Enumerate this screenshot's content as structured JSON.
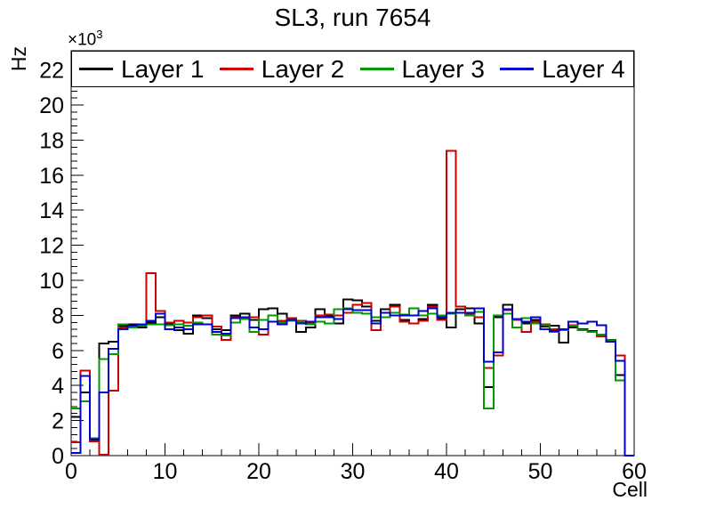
{
  "chart_data": {
    "type": "step-histogram",
    "title": "SL3, run 7654",
    "xlabel": "Cell",
    "ylabel": "Hz",
    "y_multiplier_base": "×10",
    "y_multiplier_exp": "3",
    "values_unit": "×10³ Hz",
    "n_bins": 60,
    "bin_width": 1,
    "xlim": [
      0,
      60
    ],
    "ylim": [
      0,
      23.1
    ],
    "x_ticks": [
      0,
      10,
      20,
      30,
      40,
      50,
      60
    ],
    "y_ticks": [
      0,
      2,
      4,
      6,
      8,
      10,
      12,
      14,
      16,
      18,
      20,
      22
    ],
    "x_minor_step": 2,
    "y_minor_step": 0.4,
    "grid": false,
    "legend_position": "top-inside-full-width",
    "axis_color": "#000000",
    "background_color": "#ffffff",
    "series": [
      {
        "name": "Layer 1",
        "color": "#000000",
        "values": [
          2.2,
          3.6,
          0.9,
          6.4,
          6.5,
          7.4,
          7.5,
          7.3,
          7.6,
          7.9,
          7.5,
          7.15,
          6.95,
          8.0,
          7.85,
          7.2,
          7.15,
          8.0,
          8.1,
          7.75,
          8.35,
          8.4,
          8.1,
          7.8,
          7.05,
          7.3,
          8.35,
          8.0,
          7.55,
          8.9,
          8.85,
          8.5,
          7.7,
          8.35,
          8.6,
          7.75,
          7.55,
          7.8,
          8.6,
          7.8,
          7.3,
          8.35,
          8.4,
          7.55,
          3.9,
          7.9,
          8.6,
          7.8,
          7.55,
          7.75,
          7.35,
          7.4,
          6.45,
          7.3,
          7.2,
          7.1,
          6.9,
          6.55,
          4.6,
          0
        ]
      },
      {
        "name": "Layer 2",
        "color": "#cc0000",
        "values": [
          0.75,
          4.85,
          0.8,
          0.05,
          3.7,
          7.3,
          7.4,
          7.5,
          10.4,
          8.25,
          7.6,
          7.7,
          7.6,
          7.9,
          8.0,
          7.35,
          6.6,
          7.9,
          7.85,
          7.9,
          6.9,
          8.0,
          7.7,
          7.85,
          7.7,
          7.6,
          8.0,
          8.05,
          8.0,
          8.15,
          8.6,
          8.7,
          7.15,
          8.15,
          8.5,
          7.65,
          7.55,
          7.7,
          8.5,
          7.75,
          17.4,
          8.5,
          8.1,
          7.9,
          5.0,
          5.7,
          8.3,
          7.75,
          7.05,
          7.65,
          7.5,
          7.2,
          7.2,
          7.45,
          7.15,
          7.05,
          6.8,
          6.6,
          5.7,
          0
        ]
      },
      {
        "name": "Layer 3",
        "color": "#009900",
        "values": [
          2.7,
          3.1,
          1.0,
          5.5,
          5.8,
          7.5,
          7.3,
          7.4,
          7.5,
          7.5,
          7.45,
          7.5,
          7.4,
          7.6,
          7.5,
          6.9,
          6.85,
          7.6,
          7.8,
          7.05,
          7.75,
          8.0,
          7.6,
          7.7,
          7.65,
          7.5,
          7.65,
          7.55,
          8.35,
          8.4,
          8.15,
          8.1,
          7.9,
          7.9,
          8.15,
          8.05,
          8.4,
          8.0,
          8.1,
          8.0,
          8.1,
          8.15,
          8.0,
          8.2,
          2.7,
          8.0,
          8.1,
          7.3,
          7.85,
          7.55,
          7.45,
          7.05,
          7.15,
          7.4,
          7.15,
          7.05,
          6.9,
          6.55,
          4.3,
          0
        ]
      },
      {
        "name": "Layer 4",
        "color": "#0000cc",
        "values": [
          0.15,
          4.55,
          0.95,
          3.6,
          6.1,
          7.2,
          7.4,
          7.5,
          7.7,
          8.1,
          7.2,
          7.3,
          7.2,
          7.5,
          7.5,
          7.05,
          6.95,
          7.85,
          7.9,
          7.3,
          7.2,
          7.65,
          7.5,
          7.75,
          7.55,
          7.65,
          7.9,
          7.9,
          7.8,
          8.35,
          8.3,
          8.3,
          7.55,
          8.15,
          8.0,
          8.0,
          8.0,
          8.25,
          8.4,
          7.9,
          8.15,
          8.15,
          8.15,
          8.4,
          5.35,
          5.9,
          8.35,
          7.8,
          7.65,
          7.9,
          7.2,
          7.1,
          7.2,
          7.65,
          7.55,
          7.65,
          7.45,
          6.5,
          5.4,
          0
        ]
      }
    ]
  }
}
